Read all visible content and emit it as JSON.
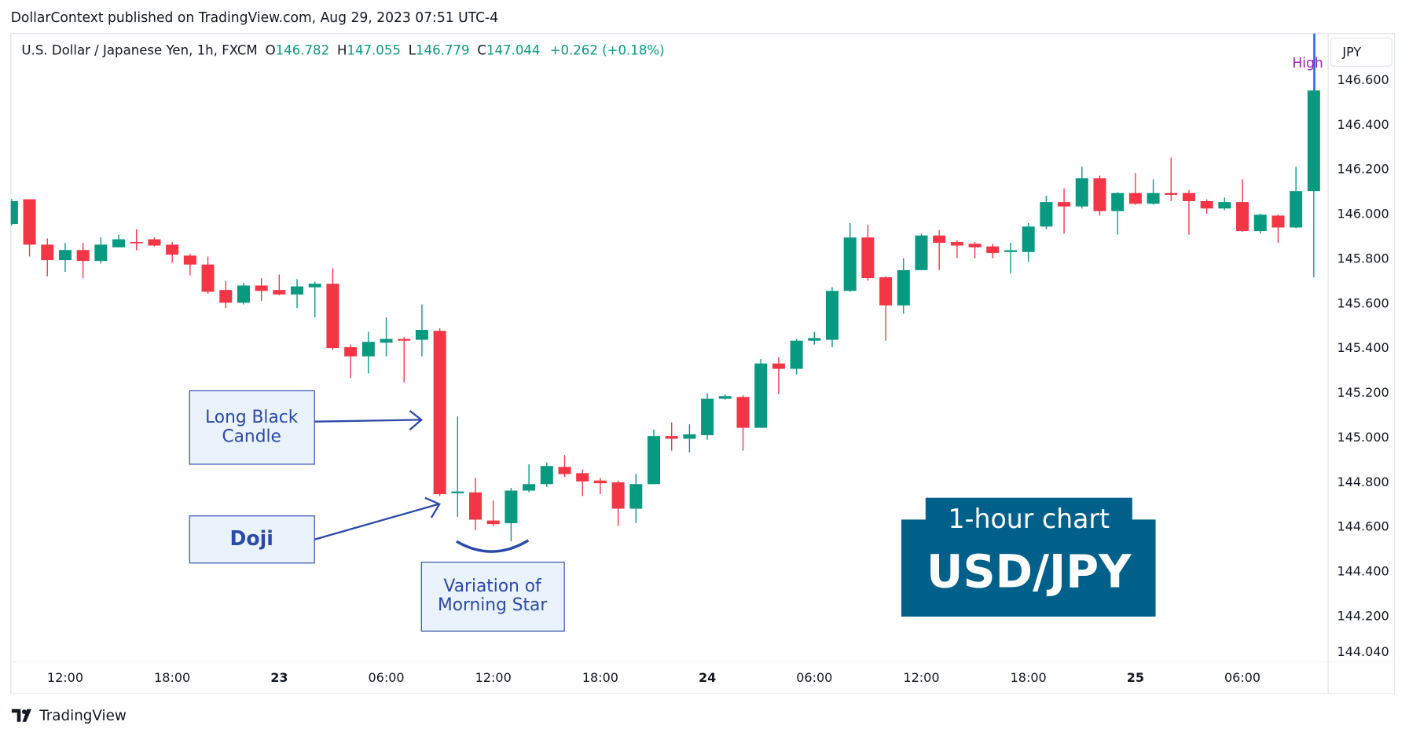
{
  "header": {
    "publisher": "DollarContext published on TradingView.com, Aug 29, 2023 07:51 UTC-4"
  },
  "footer": {
    "brand": "TradingView"
  },
  "chart_data": {
    "type": "candlestick",
    "symbol": "U.S. Dollar / Japanese Yen, 1h, FXCM",
    "ohlc_legend": {
      "open_label": "O",
      "open": 146.782,
      "high_label": "H",
      "high": 147.055,
      "low_label": "L",
      "low": 146.779,
      "close_label": "C",
      "close": 147.044,
      "change": "+0.262 (+0.18%)"
    },
    "currency": "JPY",
    "high_marker": "High",
    "annotations": {
      "long_black": "Long Black Candle",
      "doji": "Doji",
      "morning_star_1": "Variation of",
      "morning_star_2": "Morning Star",
      "badge_1": "1-hour chart",
      "badge_2": "USD/JPY"
    },
    "up_color": "#089981",
    "down_color": "#f23645",
    "grid": false,
    "categories": [
      null,
      null,
      null,
      "12:00",
      null,
      null,
      null,
      null,
      null,
      "18:00",
      null,
      null,
      null,
      null,
      null,
      "23",
      null,
      null,
      null,
      null,
      null,
      "06:00",
      null,
      null,
      null,
      null,
      null,
      "12:00",
      null,
      null,
      null,
      null,
      null,
      "18:00",
      null,
      null,
      null,
      null,
      null,
      "24",
      null,
      null,
      null,
      null,
      null,
      "06:00",
      null,
      null,
      null,
      null,
      null,
      "12:00",
      null,
      null,
      null,
      null,
      null,
      "18:00",
      null,
      null,
      null,
      null,
      null,
      "25",
      null,
      null,
      null,
      null,
      null,
      "06:00",
      null,
      null,
      null,
      null
    ],
    "open": [
      145.958,
      146.068,
      145.865,
      145.796,
      145.841,
      145.792,
      145.853,
      145.877,
      145.889,
      145.865,
      145.816,
      145.776,
      145.662,
      145.605,
      145.682,
      145.662,
      145.642,
      145.674,
      145.69,
      145.406,
      145.365,
      145.426,
      145.443,
      145.439,
      145.479,
      144.752,
      144.756,
      144.63,
      144.618,
      144.764,
      144.793,
      144.87,
      144.842,
      144.809,
      144.801,
      144.683,
      144.793,
      145.008,
      144.996,
      145.012,
      145.175,
      145.183,
      145.045,
      145.333,
      145.309,
      145.435,
      145.439,
      145.658,
      145.897,
      145.719,
      145.593,
      145.751,
      145.906,
      145.877,
      145.869,
      145.857,
      145.832,
      145.832,
      145.946,
      146.056,
      146.036,
      146.162,
      146.015,
      146.096,
      146.048,
      146.096,
      146.096,
      146.06,
      146.027,
      146.056,
      145.926,
      145.995,
      145.942,
      146.105
    ],
    "high": [
      146.07,
      146.068,
      145.893,
      145.873,
      145.873,
      145.897,
      145.91,
      145.934,
      145.897,
      145.877,
      145.824,
      145.812,
      145.703,
      145.694,
      145.715,
      145.731,
      145.711,
      145.699,
      145.759,
      145.418,
      145.475,
      145.54,
      145.451,
      145.597,
      145.491,
      145.096,
      144.821,
      144.72,
      144.776,
      144.882,
      144.89,
      144.923,
      144.858,
      144.821,
      144.809,
      144.838,
      145.037,
      145.069,
      145.061,
      145.199,
      145.195,
      145.191,
      145.353,
      145.361,
      145.443,
      145.475,
      145.674,
      145.962,
      145.954,
      145.723,
      145.804,
      145.914,
      145.93,
      145.885,
      145.877,
      145.869,
      145.873,
      145.962,
      146.084,
      146.117,
      146.214,
      146.174,
      146.1,
      146.186,
      146.157,
      146.255,
      146.109,
      146.068,
      146.076,
      146.157,
      146.003,
      145.999,
      146.214,
      146.81
    ],
    "low": [
      145.95,
      145.812,
      145.723,
      145.743,
      145.715,
      145.78,
      145.853,
      145.84,
      145.857,
      145.784,
      145.727,
      145.646,
      145.581,
      145.597,
      145.613,
      145.638,
      145.581,
      145.54,
      145.394,
      145.268,
      145.288,
      145.365,
      145.248,
      145.365,
      144.74,
      144.647,
      144.586,
      144.606,
      144.537,
      144.756,
      144.781,
      144.825,
      144.74,
      144.748,
      144.606,
      144.618,
      144.793,
      144.943,
      144.935,
      144.992,
      145.171,
      144.943,
      145.045,
      145.195,
      145.284,
      145.418,
      145.406,
      145.654,
      145.703,
      145.435,
      145.556,
      145.751,
      145.751,
      145.804,
      145.804,
      145.804,
      145.735,
      145.788,
      145.934,
      145.914,
      146.027,
      145.995,
      145.91,
      146.044,
      146.044,
      146.06,
      145.91,
      146.003,
      146.019,
      145.922,
      145.914,
      145.873,
      145.938,
      145.719
    ],
    "close": [
      146.06,
      145.865,
      145.796,
      145.841,
      145.792,
      145.865,
      145.889,
      145.873,
      145.861,
      145.82,
      145.776,
      145.654,
      145.605,
      145.682,
      145.658,
      145.642,
      145.678,
      145.69,
      145.402,
      145.365,
      145.43,
      145.443,
      145.435,
      145.483,
      144.748,
      144.76,
      144.634,
      144.614,
      144.764,
      144.793,
      144.874,
      144.838,
      144.805,
      144.797,
      144.683,
      144.793,
      145.008,
      144.996,
      145.016,
      145.175,
      145.187,
      145.045,
      145.333,
      145.309,
      145.435,
      145.447,
      145.658,
      145.897,
      145.715,
      145.593,
      145.751,
      145.906,
      145.873,
      145.861,
      145.853,
      145.828,
      145.84,
      145.946,
      146.056,
      146.036,
      146.162,
      146.015,
      146.096,
      146.048,
      146.096,
      146.088,
      146.06,
      146.027,
      146.056,
      145.926,
      145.999,
      145.942,
      146.105,
      146.555
    ],
    "ylim": [
      143.855,
      146.81
    ],
    "yticks": [
      {
        "value": 146.6,
        "label": "146.600"
      },
      {
        "value": 146.4,
        "label": "146.400"
      },
      {
        "value": 146.2,
        "label": "146.200"
      },
      {
        "value": 146.0,
        "label": "146.000"
      },
      {
        "value": 145.8,
        "label": "145.800"
      },
      {
        "value": 145.6,
        "label": "145.600"
      },
      {
        "value": 145.4,
        "label": "145.400"
      },
      {
        "value": 145.2,
        "label": "145.200"
      },
      {
        "value": 145.0,
        "label": "145.000"
      },
      {
        "value": 144.8,
        "label": "144.800"
      },
      {
        "value": 144.6,
        "label": "144.600"
      },
      {
        "value": 144.4,
        "label": "144.400"
      },
      {
        "value": 144.2,
        "label": "144.200"
      },
      {
        "value": 144.04,
        "label": "144.040"
      }
    ]
  }
}
